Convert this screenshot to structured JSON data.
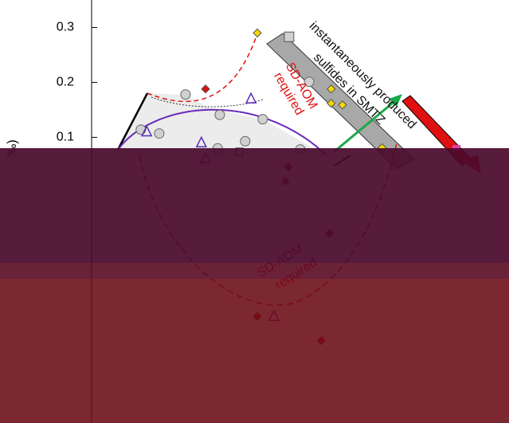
{
  "chart_data": {
    "type": "scatter",
    "y_label": "‰)",
    "ylim": [
      -0.42,
      0.35
    ],
    "xlim": [
      0,
      100
    ],
    "yticks": [
      0.1,
      0.2,
      0.3
    ],
    "annotations": [
      "instantaneously produced",
      "sulfides in SMTZ",
      "SD-AOM",
      "required",
      "SD-AOM",
      "required"
    ],
    "series": [
      {
        "marker": "circle",
        "color": "#d0d0d0",
        "x": [
          11.8,
          16.2,
          22.5,
          30.7,
          36.8,
          41.0,
          50.0,
          52.1,
          30.2
        ],
        "values": [
          0.114,
          0.107,
          0.178,
          0.141,
          0.093,
          0.133,
          0.078,
          0.201,
          0.08
        ]
      },
      {
        "marker": "triangle",
        "color": "#5a2ab8",
        "x": [
          13.2,
          26.3,
          38.2,
          27.3,
          43.7
        ],
        "values": [
          0.11,
          0.09,
          0.17,
          0.061,
          -0.226
        ]
      },
      {
        "marker": "diamond",
        "color": "#f5d800",
        "x": [
          39.7,
          57.4,
          57.4,
          60.1,
          69.6
        ],
        "values": [
          0.29,
          0.188,
          0.162,
          0.159,
          0.081
        ]
      },
      {
        "marker": "diamond",
        "color": "#e01010",
        "x": [
          27.3,
          46.4,
          47.1,
          57.0,
          39.7,
          55.0
        ],
        "values": [
          0.188,
          0.02,
          0.046,
          -0.075,
          -0.226,
          -0.27
        ]
      },
      {
        "marker": "square",
        "color": "#d0d0d0",
        "x": [
          47.3
        ],
        "values": [
          0.283
        ]
      }
    ]
  }
}
